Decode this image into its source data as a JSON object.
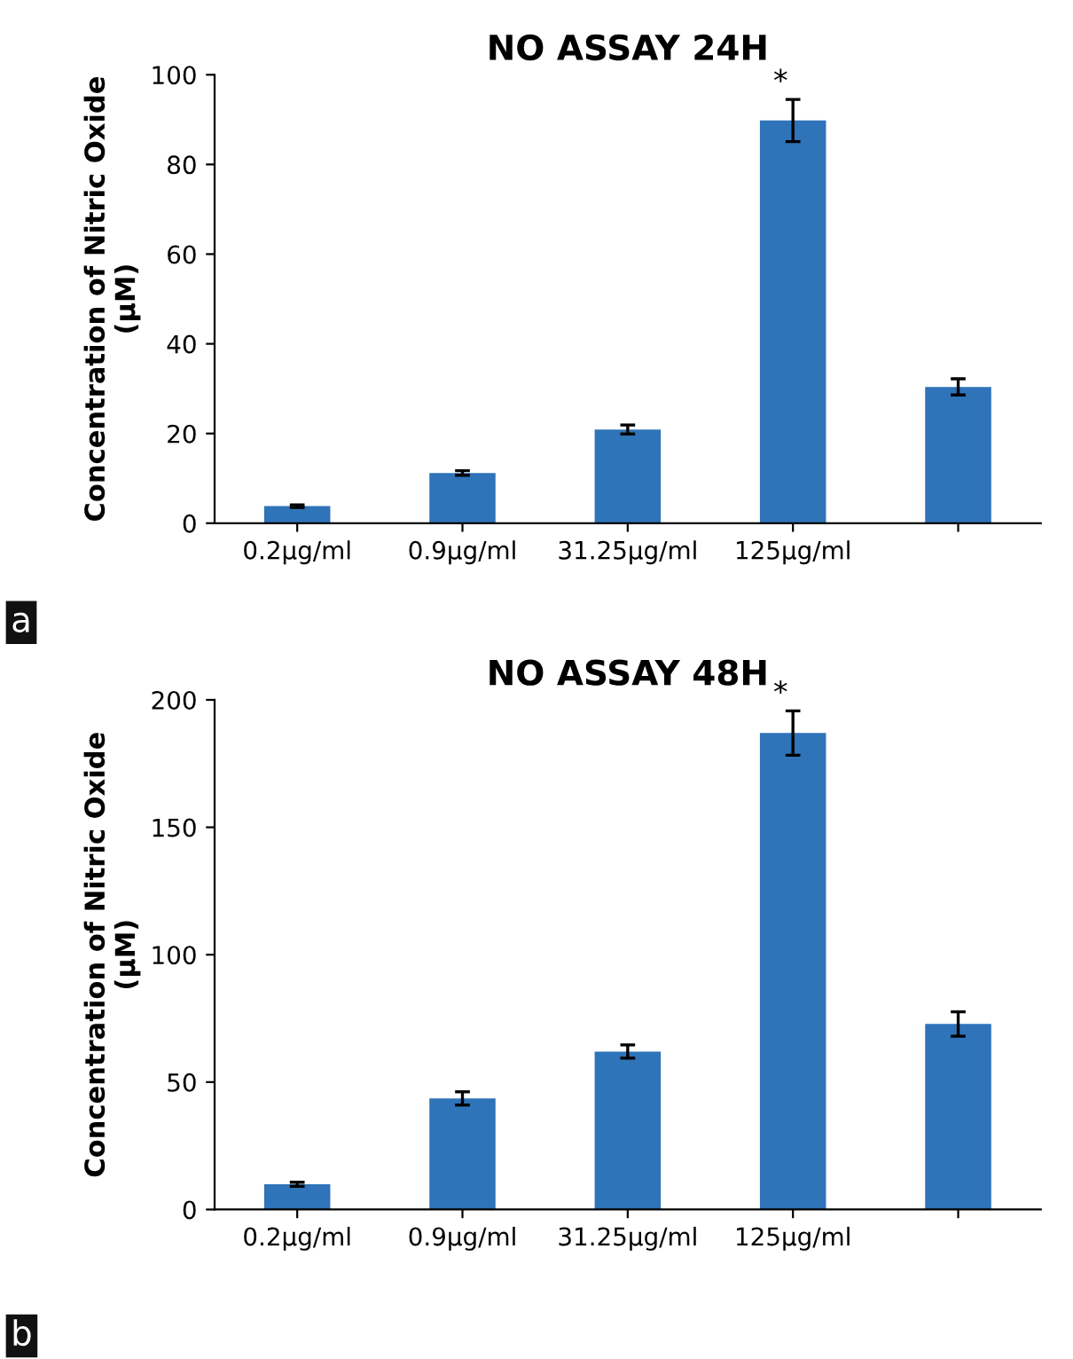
{
  "chart_data": [
    {
      "type": "bar",
      "title": "NO ASSAY 24H",
      "ylabel": "Concentration of Nitric Oxide\n(µM)",
      "categories": [
        "0.2µg/ml",
        "0.9µg/ml",
        "31.25µg/ml",
        "125µg/ml",
        null
      ],
      "values": [
        3.8,
        11.2,
        20.9,
        89.8,
        30.4
      ],
      "errors": [
        0.3,
        0.5,
        1.0,
        4.7,
        1.8
      ],
      "color": "#2f73b9",
      "ylim": [
        0,
        100
      ],
      "yticks": [
        0,
        20,
        40,
        60,
        80,
        100
      ],
      "grid": false,
      "legend": false,
      "annotations": [
        {
          "text": "*",
          "x": "125µg/ml",
          "y": 94.5
        },
        "a"
      ]
    },
    {
      "type": "bar",
      "title": "NO ASSAY 48H",
      "ylabel": "Concentration of Nitric Oxide\n(µM)",
      "categories": [
        "0.2µg/ml",
        "0.9µg/ml",
        "31.25µg/ml",
        "125µg/ml",
        null
      ],
      "values": [
        9.9,
        43.6,
        62,
        187,
        72.8
      ],
      "errors": [
        0.8,
        2.6,
        2.6,
        8.7,
        4.8
      ],
      "color": "#2f73b9",
      "ylim": [
        0,
        200
      ],
      "yticks": [
        0,
        50,
        100,
        150,
        200
      ],
      "grid": false,
      "legend": false,
      "annotations": [
        {
          "text": "*",
          "x": "125µg/ml",
          "y": 195.7
        },
        "b"
      ]
    }
  ]
}
